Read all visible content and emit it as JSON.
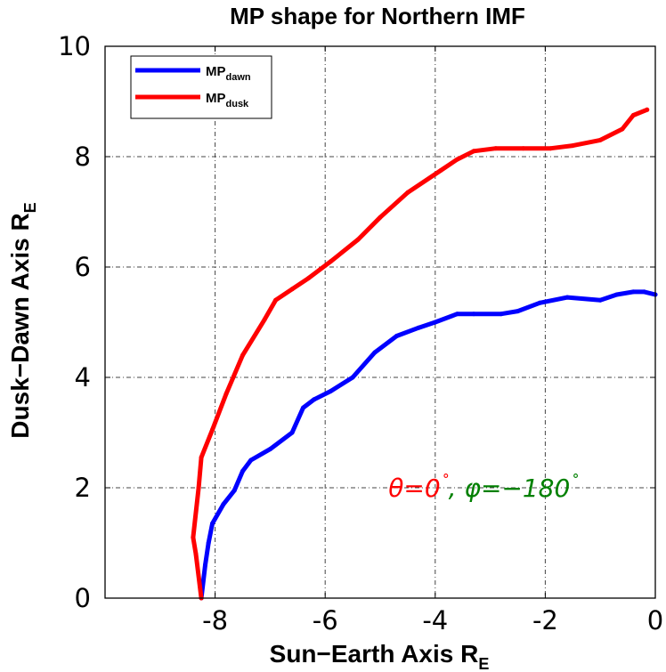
{
  "chart_data": {
    "type": "line",
    "title": "MP shape for Northern IMF",
    "xlabel": "Sun−Earth Axis R",
    "xlabel_sub": "E",
    "ylabel": "Dusk−Dawn Axis R",
    "ylabel_sub": "E",
    "xlim": [
      -10,
      0
    ],
    "ylim": [
      0,
      10
    ],
    "xticks": [
      -8,
      -6,
      -4,
      -2,
      0
    ],
    "xtick_labels": [
      "-8",
      "-6",
      "-4",
      "-2",
      "0"
    ],
    "yticks": [
      0,
      2,
      4,
      6,
      8,
      10
    ],
    "ytick_labels": [
      "0",
      "2",
      "4",
      "6",
      "8",
      "10"
    ],
    "grid": true,
    "legend_position": "top-left",
    "series": [
      {
        "name": "MP",
        "name_sub": "dawn",
        "color": "#0000ff",
        "x": [
          -8.25,
          -8.18,
          -8.12,
          -8.05,
          -7.85,
          -7.65,
          -7.5,
          -7.35,
          -7.0,
          -6.6,
          -6.4,
          -6.2,
          -5.9,
          -5.5,
          -5.1,
          -4.7,
          -4.3,
          -4.0,
          -3.6,
          -3.3,
          -2.8,
          -2.5,
          -2.1,
          -1.6,
          -1.0,
          -0.7,
          -0.4,
          -0.2,
          0.0
        ],
        "y": [
          0.0,
          0.6,
          1.0,
          1.35,
          1.7,
          1.95,
          2.3,
          2.5,
          2.7,
          3.0,
          3.45,
          3.6,
          3.75,
          4.0,
          4.45,
          4.75,
          4.9,
          5.0,
          5.15,
          5.15,
          5.15,
          5.2,
          5.35,
          5.45,
          5.4,
          5.5,
          5.55,
          5.55,
          5.5
        ]
      },
      {
        "name": "MP",
        "name_sub": "dusk",
        "color": "#ff0000",
        "x": [
          -8.25,
          -8.35,
          -8.4,
          -8.3,
          -8.25,
          -8.05,
          -7.8,
          -7.5,
          -7.1,
          -6.9,
          -6.6,
          -6.3,
          -5.9,
          -5.4,
          -5.0,
          -4.5,
          -3.9,
          -3.6,
          -3.3,
          -2.9,
          -2.4,
          -1.9,
          -1.5,
          -1.0,
          -0.6,
          -0.4,
          -0.15
        ],
        "y": [
          0.0,
          0.8,
          1.1,
          2.0,
          2.55,
          3.05,
          3.7,
          4.4,
          5.05,
          5.4,
          5.6,
          5.8,
          6.1,
          6.5,
          6.9,
          7.35,
          7.75,
          7.95,
          8.1,
          8.15,
          8.15,
          8.15,
          8.2,
          8.3,
          8.5,
          8.75,
          8.85
        ]
      }
    ],
    "annotation": {
      "parts": [
        {
          "text": "θ=0",
          "color": "#ff0000"
        },
        {
          "text": "˚",
          "color": "#ff0000",
          "sup": true
        },
        {
          "text": ", φ=−180",
          "color": "#008000"
        },
        {
          "text": "˚",
          "color": "#008000",
          "sup": true
        }
      ],
      "x": -4.85,
      "y": 2.0
    }
  }
}
